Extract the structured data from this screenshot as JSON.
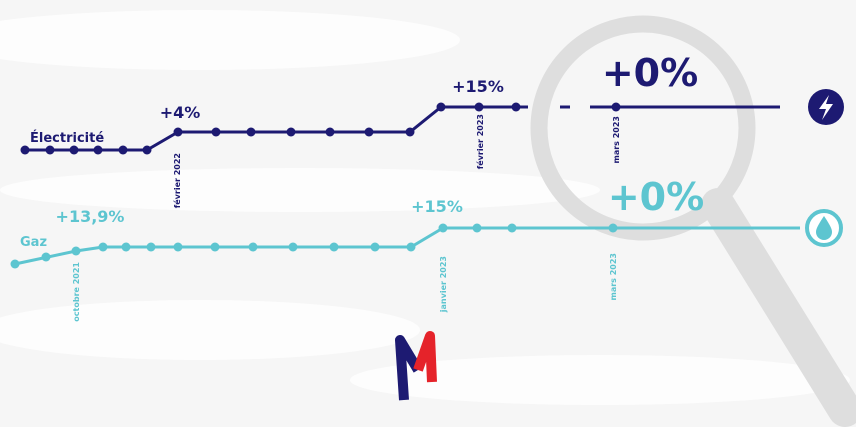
{
  "electricity": {
    "label": "Électricité",
    "changes": [
      {
        "text": "+4%",
        "date": "février 2022"
      },
      {
        "text": "+15%",
        "date": "février 2023"
      },
      {
        "text": "+0%",
        "date": "mars 2023"
      }
    ]
  },
  "gas": {
    "label": "Gaz",
    "changes": [
      {
        "text": "+13,9%",
        "date": "octobre 2021"
      },
      {
        "text": "+15%",
        "date": "janvier 2023"
      },
      {
        "text": "+0%",
        "date": "mars 2023"
      }
    ]
  }
}
